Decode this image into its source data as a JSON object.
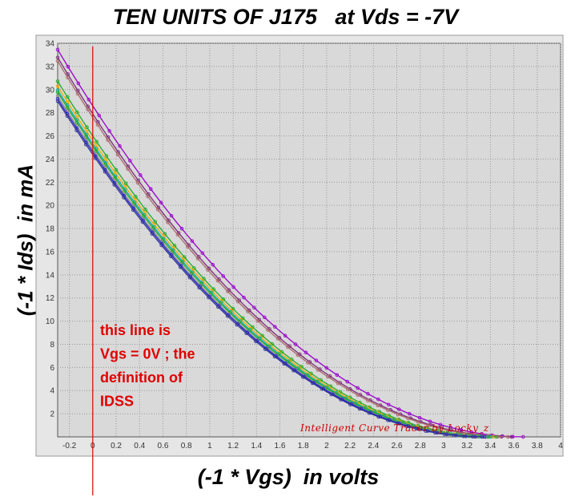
{
  "chart_data": {
    "type": "line",
    "title": "TEN UNITS OF J175   at Vds = -7V",
    "xlabel": "(-1 * Vgs)  in volts",
    "ylabel": "(-1 * Ids)  in mA",
    "xlim": [
      -0.3,
      4.0
    ],
    "ylim": [
      0,
      34
    ],
    "xticks": [
      -0.2,
      0,
      0.2,
      0.4,
      0.6,
      0.8,
      1,
      1.2,
      1.4,
      1.6,
      1.8,
      2,
      2.2,
      2.4,
      2.6,
      2.8,
      3,
      3.2,
      3.4,
      3.6,
      3.8,
      4
    ],
    "yticks": [
      2,
      4,
      6,
      8,
      10,
      12,
      14,
      16,
      18,
      20,
      22,
      24,
      26,
      28,
      30,
      32,
      34
    ],
    "grid": true,
    "legend": "none",
    "reference_line": {
      "x": 0
    },
    "annotation": [
      "this line is",
      "Vgs = 0V ; the",
      "definition of",
      "IDSS"
    ],
    "watermark": "Intelligent Curve Tracer by Locky_z",
    "series": [
      {
        "idss": 28.6,
        "vp": 3.68,
        "color": "#9900cc"
      },
      {
        "idss": 27.9,
        "vp": 3.58,
        "color": "#7a2a7a"
      },
      {
        "idss": 27.6,
        "vp": 3.55,
        "color": "#aa6a6a"
      },
      {
        "idss": 26.0,
        "vp": 3.45,
        "color": "#22aa22"
      },
      {
        "idss": 25.6,
        "vp": 3.42,
        "color": "#eeaa00"
      },
      {
        "idss": 25.3,
        "vp": 3.4,
        "color": "#00aaaa"
      },
      {
        "idss": 25.1,
        "vp": 3.38,
        "color": "#22aa22"
      },
      {
        "idss": 24.8,
        "vp": 3.36,
        "color": "#888888"
      },
      {
        "idss": 24.6,
        "vp": 3.35,
        "color": "#2222cc"
      },
      {
        "idss": 24.4,
        "vp": 3.33,
        "color": "#333399"
      }
    ]
  }
}
